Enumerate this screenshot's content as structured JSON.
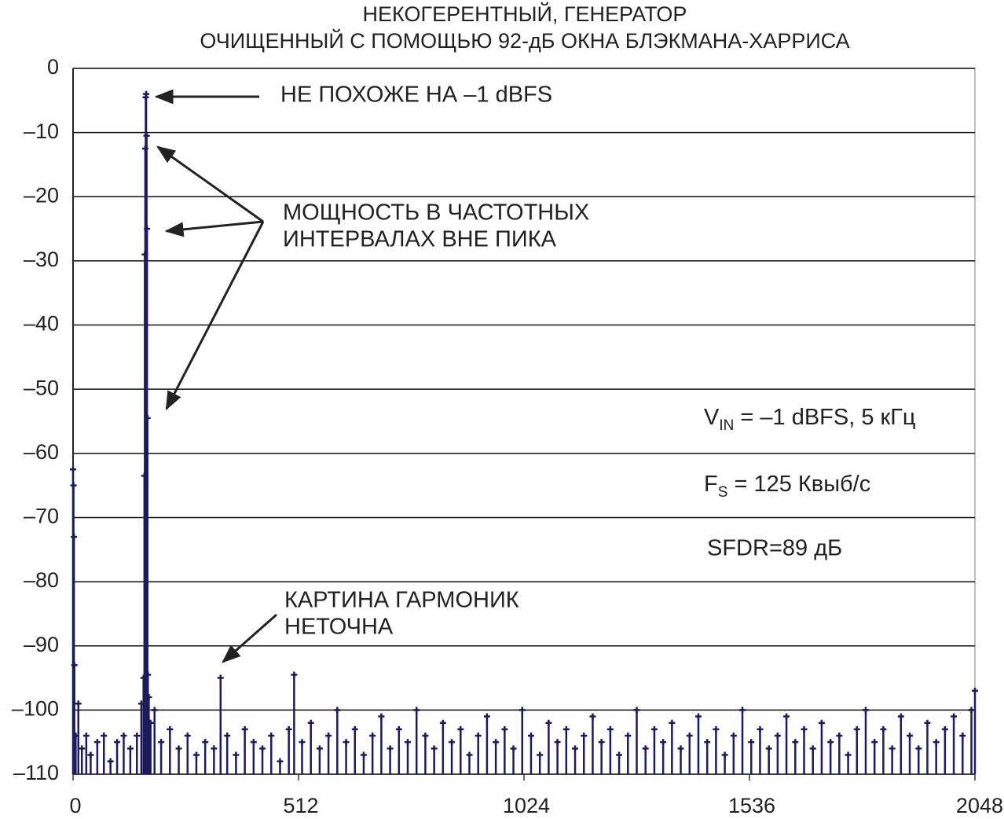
{
  "chart_data": {
    "type": "stem",
    "title": [
      "НЕКОГЕРЕНТНЫЙ, ГЕНЕРАТОР",
      "ОЧИЩЕННЫЙ С ПОМОЩЬЮ 92-дБ ОКНА БЛЭКМАНА-ХАРРИСА"
    ],
    "annotations": {
      "peak": "НЕ ПОХОЖЕ НА –1 dBFS",
      "leakage": [
        "МОЩНОСТЬ В ЧАСТОТНЫХ",
        "ИНТЕРВАЛАХ ВНЕ ПИКА"
      ],
      "harmonics": [
        "КАРТИНА ГАРМОНИК",
        "НЕТОЧНА"
      ],
      "vin": [
        "V",
        "IN",
        " = –1 dBFS, 5 кГц"
      ],
      "fs": [
        "F",
        "S",
        " = 125 Квыб/с"
      ],
      "sfdr": "SFDR=89 дБ"
    },
    "color": "#1c1c5c",
    "grid": true,
    "xlim": [
      0,
      2048
    ],
    "xticks": [
      0,
      512,
      1024,
      1536,
      2048
    ],
    "ylim": [
      -110,
      0
    ],
    "yticks": [
      {
        "value": -110,
        "label": "–110"
      },
      {
        "value": -100,
        "label": "–100"
      },
      {
        "value": -90,
        "label": "–90"
      },
      {
        "value": -80,
        "label": "–80"
      },
      {
        "value": -70,
        "label": "–70"
      },
      {
        "value": -60,
        "label": "–60"
      },
      {
        "value": -50,
        "label": "–50"
      },
      {
        "value": -40,
        "label": "–40"
      },
      {
        "value": -30,
        "label": "–30"
      },
      {
        "value": -20,
        "label": "–20"
      },
      {
        "value": -10,
        "label": "–10"
      },
      0
    ],
    "x": [
      0,
      1,
      2,
      3,
      6,
      12,
      20,
      30,
      40,
      55,
      70,
      85,
      100,
      115,
      130,
      145,
      155,
      160,
      162,
      163,
      164,
      165,
      166,
      167,
      168,
      169,
      170,
      172,
      176,
      185,
      200,
      220,
      240,
      260,
      280,
      300,
      320,
      335,
      350,
      370,
      390,
      410,
      430,
      450,
      470,
      490,
      502,
      520,
      540,
      560,
      580,
      600,
      620,
      640,
      660,
      680,
      700,
      720,
      740,
      760,
      780,
      800,
      820,
      840,
      860,
      880,
      900,
      920,
      940,
      960,
      980,
      1000,
      1020,
      1040,
      1060,
      1080,
      1100,
      1120,
      1140,
      1160,
      1180,
      1200,
      1220,
      1240,
      1260,
      1280,
      1300,
      1320,
      1340,
      1360,
      1380,
      1400,
      1420,
      1440,
      1460,
      1480,
      1500,
      1520,
      1540,
      1560,
      1580,
      1600,
      1620,
      1640,
      1660,
      1680,
      1700,
      1720,
      1740,
      1760,
      1780,
      1800,
      1820,
      1840,
      1860,
      1880,
      1900,
      1920,
      1940,
      1960,
      1980,
      2000,
      2020,
      2040,
      2048
    ],
    "values": [
      -62.5,
      -65,
      -73,
      -93,
      -104,
      -99,
      -106,
      -104,
      -107,
      -105,
      -104,
      -108,
      -105,
      -104,
      -106,
      -104,
      -99,
      -95,
      -63.5,
      -29,
      -12.5,
      -4.5,
      -4,
      -10.5,
      -25,
      -54.5,
      -94.5,
      -98,
      -102,
      -100,
      -105,
      -103,
      -106,
      -104,
      -107,
      -105,
      -106,
      -95,
      -104,
      -107,
      -103,
      -105,
      -106,
      -104,
      -108,
      -103,
      -94.5,
      -105,
      -102,
      -106,
      -104,
      -100,
      -105,
      -103,
      -107,
      -104,
      -101,
      -106,
      -103,
      -105,
      -100,
      -104,
      -106,
      -102,
      -105,
      -103,
      -107,
      -104,
      -101,
      -105,
      -103,
      -106,
      -100,
      -104,
      -107,
      -102,
      -105,
      -103,
      -106,
      -104,
      -101,
      -105,
      -103,
      -107,
      -104,
      -100,
      -106,
      -103,
      -105,
      -102,
      -106,
      -104,
      -101,
      -105,
      -103,
      -107,
      -104,
      -100,
      -105,
      -103,
      -106,
      -104,
      -101,
      -105,
      -103,
      -106,
      -102,
      -105,
      -104,
      -107,
      -103,
      -100,
      -105,
      -103,
      -106,
      -101,
      -104,
      -106,
      -102,
      -105,
      -103,
      -101,
      -104,
      -100,
      -97
    ]
  }
}
